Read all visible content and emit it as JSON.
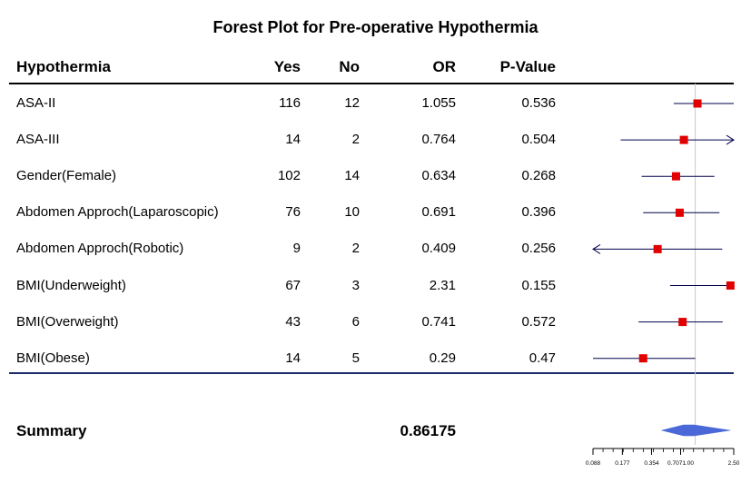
{
  "chart_data": {
    "type": "forest",
    "title": "Forest Plot for Pre-operative Hypothermia",
    "columns": [
      "Hypothermia",
      "Yes",
      "No",
      "OR",
      "P-Value"
    ],
    "rows": [
      {
        "label": "ASA-II",
        "yes": "116",
        "no": "12",
        "or": "1.055",
        "p": "0.536",
        "or_value": 1.055,
        "ci_low": 0.6,
        "ci_high": 2.5,
        "arrow_high": false,
        "arrow_low": false
      },
      {
        "label": "ASA-III",
        "yes": "14",
        "no": "2",
        "or": "0.764",
        "p": "0.504",
        "or_value": 0.764,
        "ci_low": 0.17,
        "ci_high": 2.5,
        "arrow_high": true,
        "arrow_low": false
      },
      {
        "label": "Gender(Female)",
        "yes": "102",
        "no": "14",
        "or": "0.634",
        "p": "0.268",
        "or_value": 0.634,
        "ci_low": 0.28,
        "ci_high": 1.58,
        "arrow_high": false,
        "arrow_low": false
      },
      {
        "label": "Abdomen Approch(Laparoscopic)",
        "yes": "76",
        "no": "10",
        "or": "0.691",
        "p": "0.396",
        "or_value": 0.691,
        "ci_low": 0.29,
        "ci_high": 1.78,
        "arrow_high": false,
        "arrow_low": false
      },
      {
        "label": "Abdomen Approch(Robotic)",
        "yes": "9",
        "no": "2",
        "or": "0.409",
        "p": "0.256",
        "or_value": 0.409,
        "ci_low": 0.088,
        "ci_high": 1.9,
        "arrow_high": false,
        "arrow_low": true
      },
      {
        "label": "BMI(Underweight)",
        "yes": "67",
        "no": "3",
        "or": "2.31",
        "p": "0.155",
        "or_value": 2.31,
        "ci_low": 0.55,
        "ci_high": 2.5,
        "arrow_high": false,
        "arrow_low": false
      },
      {
        "label": "BMI(Overweight)",
        "yes": "43",
        "no": "6",
        "or": "0.741",
        "p": "0.572",
        "or_value": 0.741,
        "ci_low": 0.26,
        "ci_high": 1.92,
        "arrow_high": false,
        "arrow_low": false
      },
      {
        "label": "BMI(Obese)",
        "yes": "14",
        "no": "5",
        "or": "0.29",
        "p": "0.47",
        "or_value": 0.29,
        "ci_low": 0.088,
        "ci_high": 1.0,
        "arrow_high": false,
        "arrow_low": false
      }
    ],
    "summary": {
      "label": "Summary",
      "or": "0.86175",
      "or_value": 0.86175,
      "ci_low": 0.45,
      "ci_high": 2.3
    },
    "x_scale": "log",
    "xlim": [
      0.088,
      2.5
    ],
    "reference_line": 1.0,
    "x_ticks": [
      {
        "value": 0.088,
        "label": "0.088"
      },
      {
        "value": 0.177,
        "label": "0.177"
      },
      {
        "value": 0.354,
        "label": "0.354"
      },
      {
        "value": 0.7071,
        "label": "0.7071.00"
      },
      {
        "value": 2.5,
        "label": "2.50"
      }
    ],
    "point_color": "#e00000",
    "ci_color": "#00004d",
    "summary_color": "#4a68d8",
    "reference_color": "#c8c8c8"
  }
}
